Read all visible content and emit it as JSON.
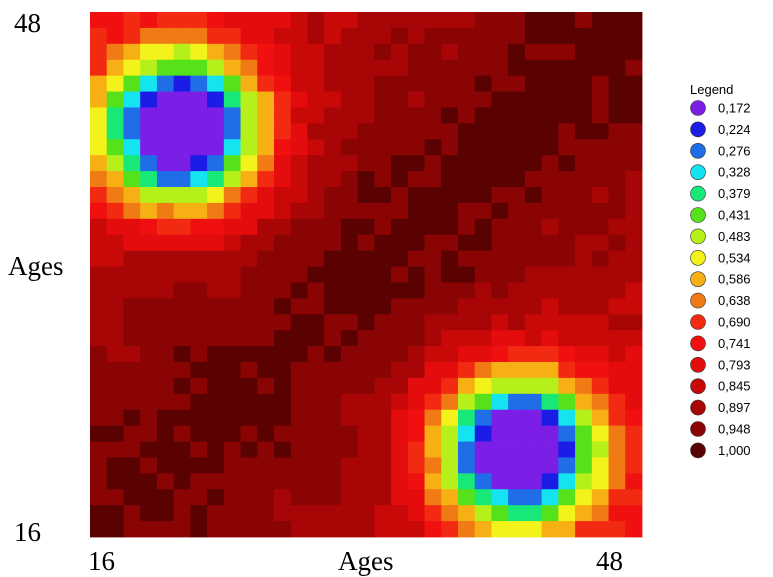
{
  "chart_data": {
    "type": "heatmap",
    "title": "",
    "xlabel": "Ages",
    "ylabel": "Ages",
    "x_range": [
      16,
      48
    ],
    "y_range": [
      16,
      48
    ],
    "x_tick_labels": [
      "16",
      "48"
    ],
    "y_tick_labels": [
      "16",
      "48"
    ],
    "grid": false,
    "legend": {
      "title": "Legend",
      "placement": "right",
      "entries": [
        {
          "label": "0,172",
          "value": 0.172,
          "color": "#7b1fe6"
        },
        {
          "label": "0,224",
          "value": 0.224,
          "color": "#1b1ce6"
        },
        {
          "label": "0,276",
          "value": 0.276,
          "color": "#1f6ee8"
        },
        {
          "label": "0,328",
          "value": 0.328,
          "color": "#14e3f0"
        },
        {
          "label": "0,379",
          "value": 0.379,
          "color": "#18e878"
        },
        {
          "label": "0,431",
          "value": 0.431,
          "color": "#55e21a"
        },
        {
          "label": "0,483",
          "value": 0.483,
          "color": "#b6f01a"
        },
        {
          "label": "0,534",
          "value": 0.534,
          "color": "#f3f21a"
        },
        {
          "label": "0,586",
          "value": 0.586,
          "color": "#f6b014"
        },
        {
          "label": "0,638",
          "value": 0.638,
          "color": "#f07a14"
        },
        {
          "label": "0,690",
          "value": 0.69,
          "color": "#f32a12"
        },
        {
          "label": "0,741",
          "value": 0.741,
          "color": "#f01010"
        },
        {
          "label": "0,793",
          "value": 0.793,
          "color": "#e40c0c"
        },
        {
          "label": "0,845",
          "value": 0.845,
          "color": "#c90808"
        },
        {
          "label": "0,897",
          "value": 0.897,
          "color": "#a80606"
        },
        {
          "label": "0,948",
          "value": 0.948,
          "color": "#8a0404"
        },
        {
          "label": "1,000",
          "value": 1.0,
          "color": "#5a0202"
        }
      ]
    },
    "grid_size": 33,
    "matrix_model": {
      "description_of_values": "symmetric similarity matrix between ages 16..48; diagonal = 1.000",
      "low_region_center_ages": [
        21,
        41
      ],
      "min_value": 0.172
    }
  }
}
